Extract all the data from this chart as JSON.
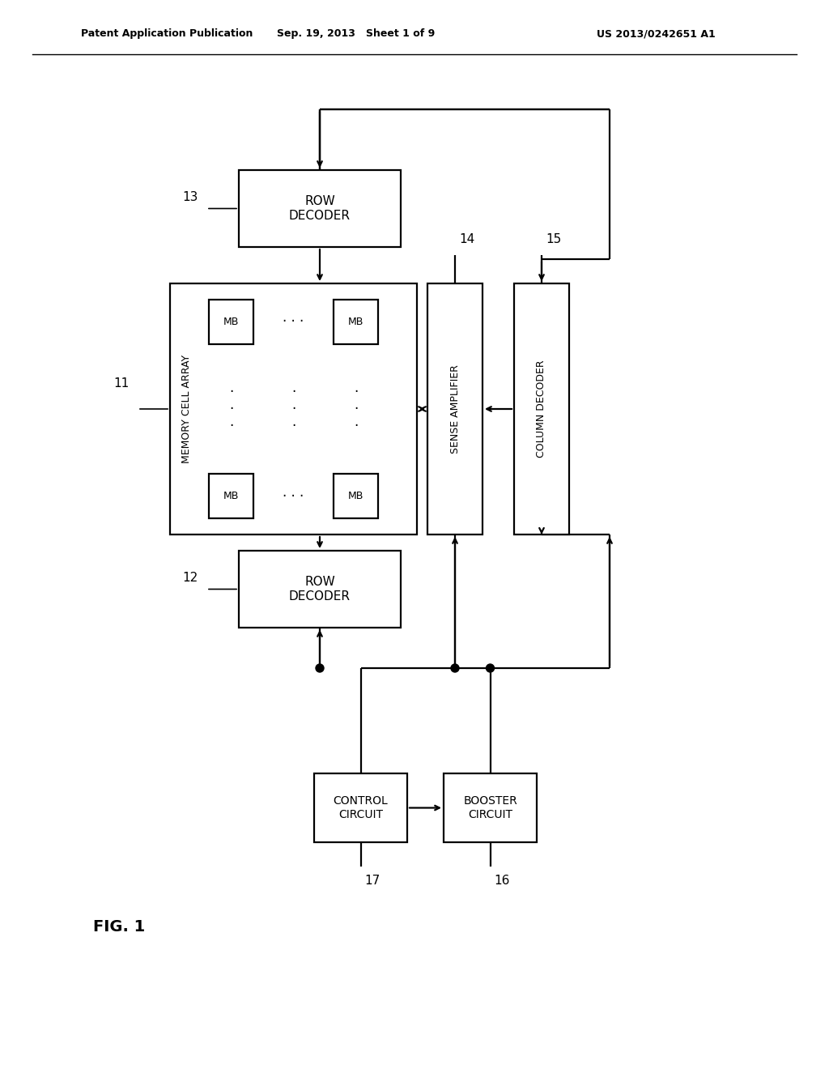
{
  "header_left": "Patent Application Publication",
  "header_center": "Sep. 19, 2013   Sheet 1 of 9",
  "header_right": "US 2013/0242651 A1",
  "fig_label": "FIG. 1",
  "bg": "#ffffff",
  "lc": "#000000"
}
